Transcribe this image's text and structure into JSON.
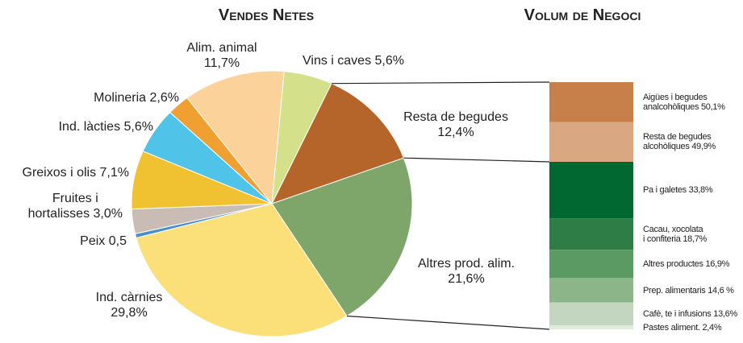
{
  "chart_data": [
    {
      "type": "pie",
      "title": "Vendes Netes",
      "categories": [
        "Vins i caves",
        "Resta de begudes",
        "Altres prod. alim.",
        "Ind. càrnies",
        "Peix",
        "Fruites i\nhortalisses",
        "Greixos i olis",
        "Ind. làcties",
        "Molineria",
        "Alim. animal"
      ],
      "values": [
        5.6,
        12.4,
        21.6,
        29.8,
        0.5,
        3.0,
        7.1,
        5.6,
        2.6,
        11.7
      ],
      "value_labels": [
        "5,6%",
        "12,4%",
        "21,6%",
        "29,8%",
        "0,5",
        "3,0%",
        "7,1%",
        "5,6%",
        "2,6%",
        "11,7%"
      ],
      "colors": [
        "#d4e08a",
        "#b5642a",
        "#7fa66a",
        "#fbe07a",
        "#4a90c8",
        "#c9bcb4",
        "#f0c232",
        "#4fc3e8",
        "#f0a030",
        "#fbd29a"
      ]
    },
    {
      "type": "stacked_bar",
      "title": "Volum de Negoci",
      "groups": [
        {
          "categories": [
            "Aigües i begudes\nanalcohòliques",
            "Resta de begudes\nalcohòliques"
          ],
          "values": [
            50.1,
            49.9
          ],
          "value_labels": [
            "50,1%",
            "49,9%"
          ],
          "colors": [
            "#c8804a",
            "#d9a882"
          ]
        },
        {
          "categories": [
            "Pa i galetes",
            "Cacau, xocolata\ni confiteria",
            "Altres productes",
            "Prep. alimentaris",
            "Cafè, te i infusions",
            "Pastes aliment."
          ],
          "values": [
            33.8,
            18.7,
            16.9,
            14.6,
            13.6,
            2.4
          ],
          "value_labels": [
            "33,8%",
            "18,7%",
            "16,9%",
            "14,6 %",
            "13,6%",
            "2,4%"
          ],
          "colors": [
            "#006830",
            "#2e7d46",
            "#5c9a63",
            "#8db58a",
            "#c3d6bf",
            "#e0ebdc"
          ]
        }
      ]
    }
  ]
}
